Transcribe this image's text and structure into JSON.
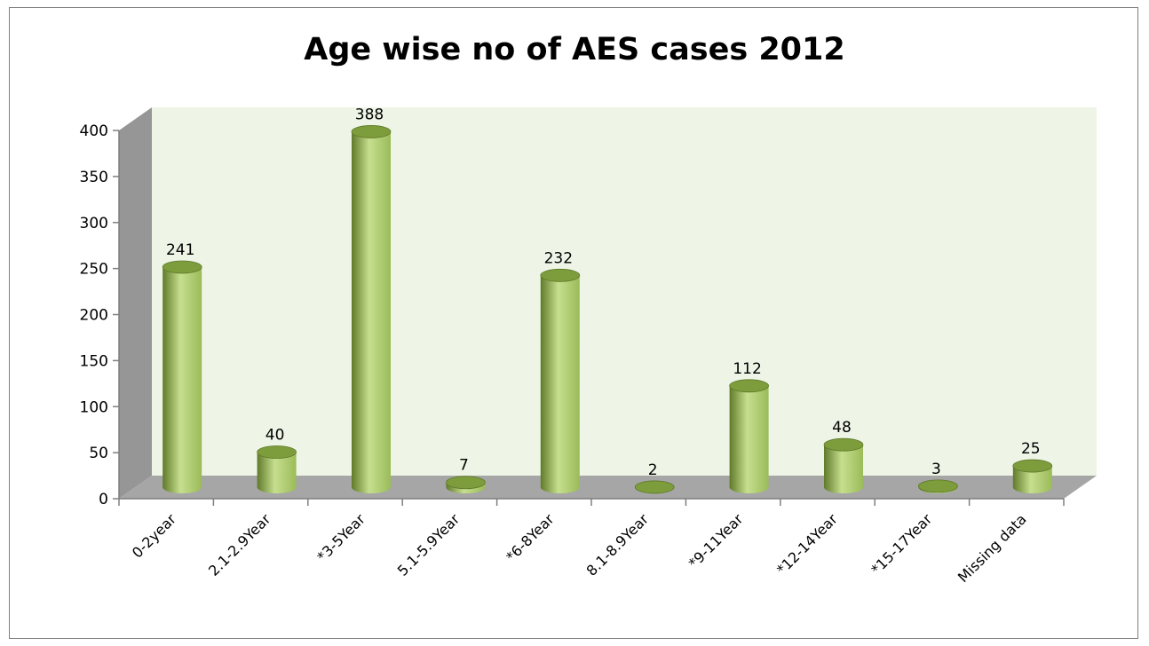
{
  "chart_data": {
    "type": "bar",
    "title": "Age wise no of AES cases 2012",
    "categories": [
      "0-2year",
      "2.1-2.9Year",
      "*3-5Year",
      "5.1-5.9Year",
      "*6-8Year",
      "8.1-8.9Year",
      "*9-11Year",
      "*12-14Year",
      "*15-17Year",
      "Missing data"
    ],
    "values": [
      241,
      40,
      388,
      7,
      232,
      2,
      112,
      48,
      3,
      25
    ],
    "data_labels": [
      "241",
      "40",
      "388",
      "7",
      "232",
      "2",
      "112",
      "48",
      "3",
      "25"
    ],
    "xlabel": "",
    "ylabel": "",
    "ylim": [
      0,
      400
    ],
    "yticks": [
      0,
      50,
      100,
      150,
      200,
      250,
      300,
      350,
      400
    ],
    "ytick_labels": [
      "0",
      "50",
      "100",
      "150",
      "200",
      "250",
      "300",
      "350",
      "400"
    ],
    "grid": false,
    "legend": "none",
    "style": "3d-cylinder",
    "colors": {
      "bar": "#9bbb59",
      "bar_dark": "#5f7a2a",
      "bar_light": "#c6df8f",
      "bar_top": "#7d9c3c",
      "back_wall": "#eef5e7",
      "floor": "#a6a6a6",
      "side_wall": "#969696",
      "axis": "#7f7f7f",
      "frame": "#7f7f7f"
    }
  }
}
